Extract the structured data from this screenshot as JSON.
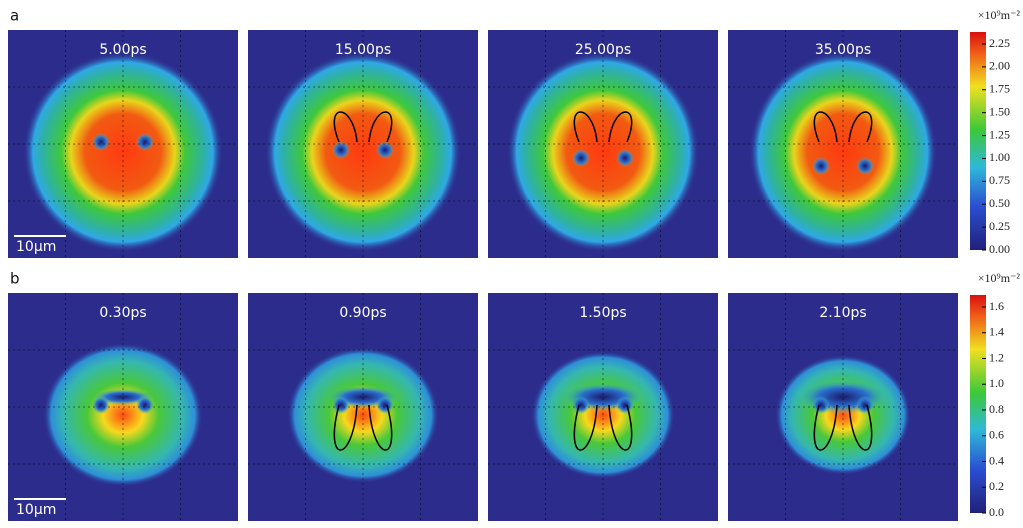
{
  "panels": [
    {
      "label": "a",
      "times": [
        "5.00ps",
        "15.00ps",
        "25.00ps",
        "35.00ps"
      ],
      "scale_bar": "10μm",
      "colorbar": {
        "unit": "×10⁹m⁻²",
        "ticks": [
          "2.25",
          "2.00",
          "1.75",
          "1.50",
          "1.25",
          "1.00",
          "0.75",
          "0.50",
          "0.25",
          "0.00"
        ]
      }
    },
    {
      "label": "b",
      "times": [
        "0.30ps",
        "0.90ps",
        "1.50ps",
        "2.10ps"
      ],
      "scale_bar": "10μm",
      "colorbar": {
        "unit": "×10⁹m⁻²",
        "ticks": [
          "1.6",
          "1.4",
          "1.2",
          "1.0",
          "0.8",
          "0.6",
          "0.4",
          "0.2",
          "0.0"
        ]
      }
    }
  ]
}
